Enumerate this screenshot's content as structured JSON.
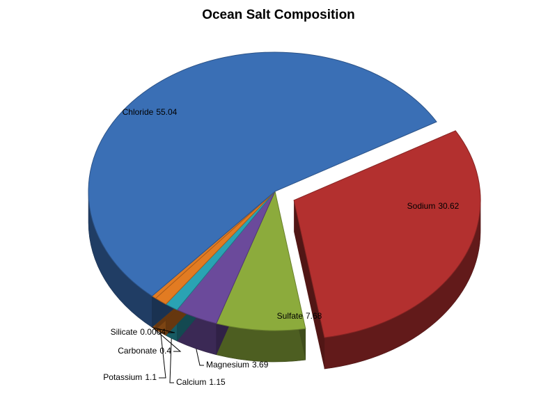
{
  "chart_data": {
    "type": "pie",
    "title": "Ocean Salt Composition",
    "categories": [
      "Sodium",
      "Sulfate",
      "Magnesium",
      "Calcium",
      "Potassium",
      "Carbonate",
      "Silicate",
      "Chloride"
    ],
    "values": [
      30.62,
      7.68,
      3.69,
      1.15,
      1.1,
      0.4,
      0.0004,
      55.04
    ],
    "colors": [
      "#b3302f",
      "#8cab3c",
      "#6b4a9b",
      "#2aa3b3",
      "#e27b22",
      "#e27b22",
      "#8fa6c6",
      "#3a6fb5"
    ]
  }
}
